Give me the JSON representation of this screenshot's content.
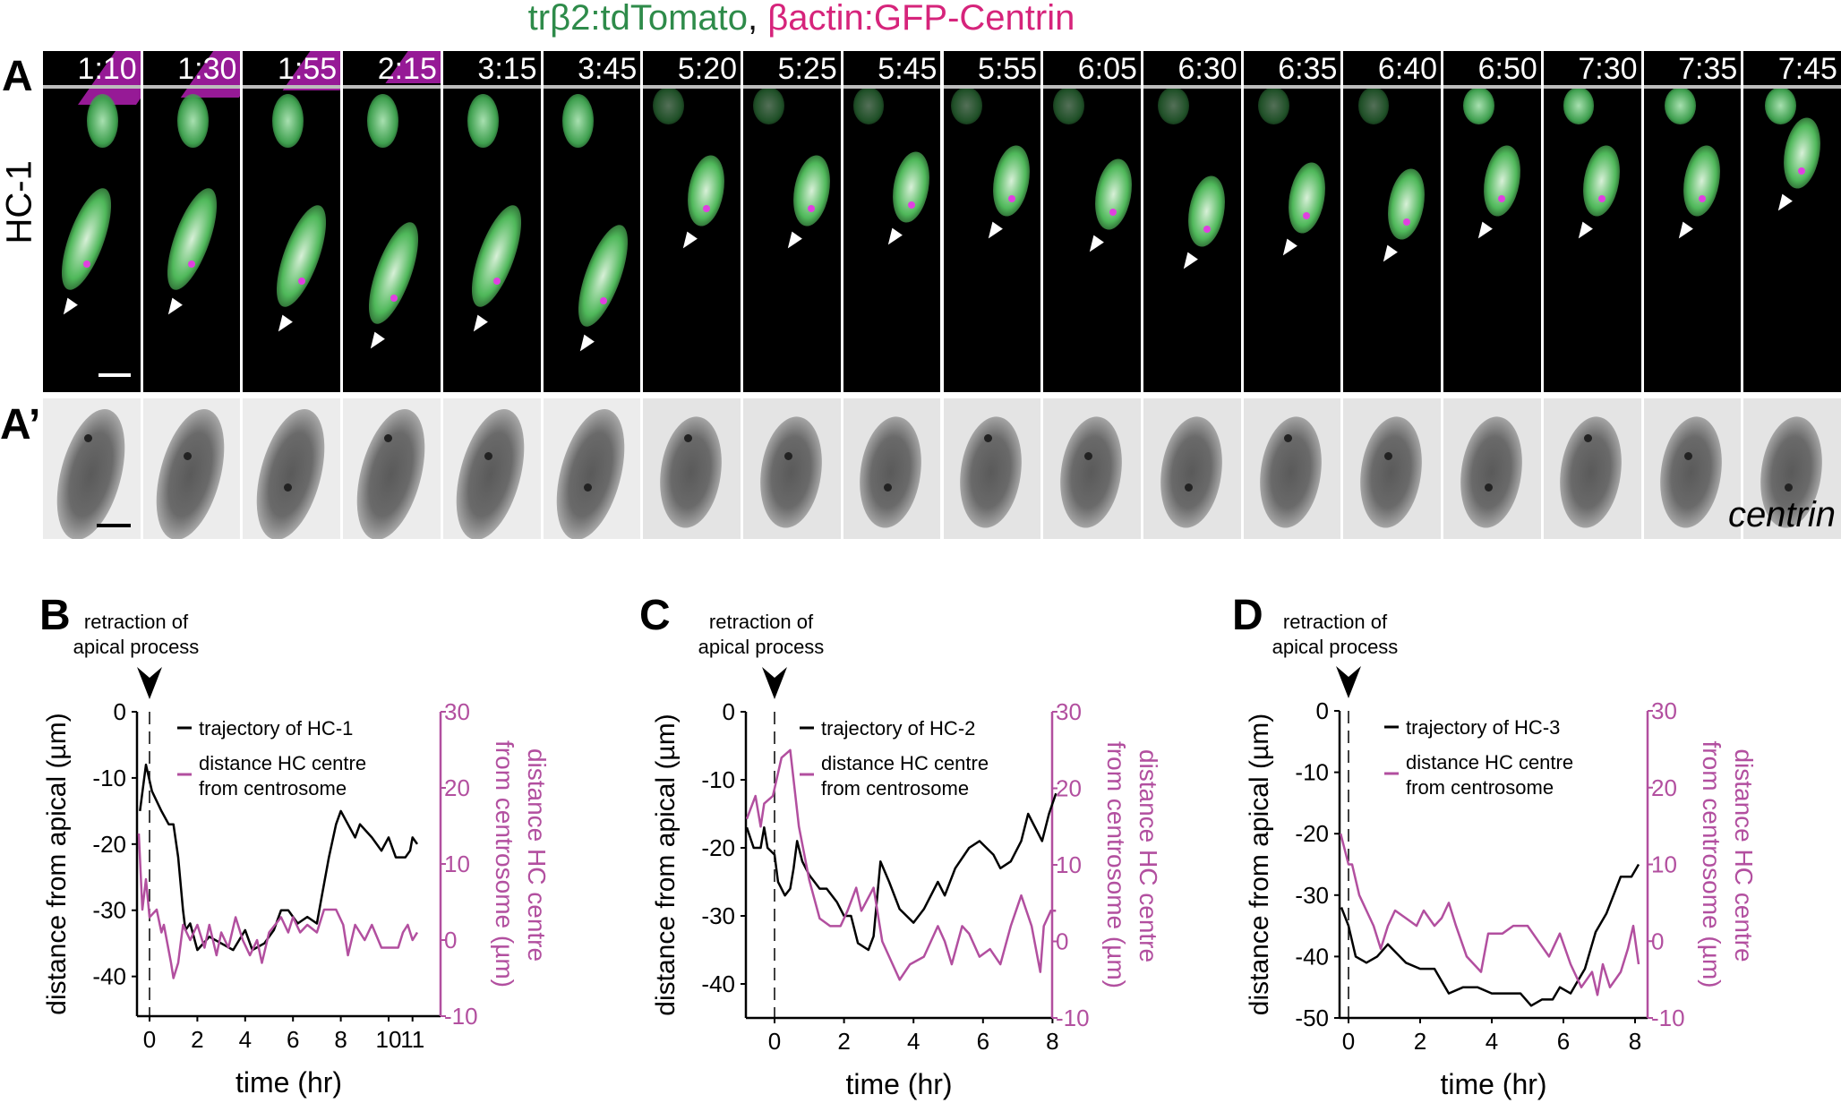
{
  "figure": {
    "title": {
      "part1": "trβ2:tdTomato",
      "sep": ",",
      "part2": " βactin:GFP-Centrin"
    },
    "colors": {
      "green": "#2e8b4a",
      "magenta_title": "#d6247b",
      "magenta_plot": "#b24f9f",
      "black": "#000000"
    },
    "panel_labels": {
      "a": "A",
      "a_prime": "A’",
      "b": "B",
      "c": "C",
      "d": "D"
    },
    "row_label": "HC-1",
    "centrin_label": "centrin",
    "timepoints": [
      "1:10",
      "1:30",
      "1:55",
      "2:15",
      "3:15",
      "3:45",
      "5:20",
      "5:25",
      "5:45",
      "5:55",
      "6:05",
      "6:30",
      "6:35",
      "6:40",
      "6:50",
      "7:30",
      "7:35",
      "7:45"
    ],
    "annotation": {
      "line1": "retraction of",
      "line2": "apical process"
    }
  },
  "chart_data": [
    {
      "type": "line",
      "panel": "B",
      "xlabel": "time (hr)",
      "ylabel": "distance from apical (µm)",
      "ylabel_right": [
        "distance HC centre",
        "from centrosome (µm)"
      ],
      "xlim": [
        -0.45,
        11.2
      ],
      "ylim": [
        -46,
        0
      ],
      "ylim_right": [
        -10,
        30
      ],
      "xticks": [
        0,
        2,
        4,
        6,
        8,
        10,
        11
      ],
      "yticks": [
        0,
        -10,
        -20,
        -30,
        -40
      ],
      "yticks_right": [
        30,
        20,
        10,
        0,
        -10
      ],
      "event_x": 0,
      "legend": {
        "position": "top-center",
        "entries": [
          "trajectory of HC-1",
          "distance HC centre\nfrom centrosome"
        ]
      },
      "series": [
        {
          "name": "trajectory of HC-1",
          "axis": "left",
          "color": "#000000",
          "x": [
            -0.4,
            -0.15,
            0.1,
            0.5,
            0.8,
            1.0,
            1.2,
            1.4,
            1.5,
            1.7,
            2.0,
            2.5,
            3.0,
            3.5,
            4.0,
            4.3,
            4.8,
            5.2,
            5.5,
            5.8,
            6.2,
            6.6,
            7.0,
            7.2,
            7.5,
            7.8,
            8.0,
            8.3,
            8.6,
            8.8,
            9.3,
            9.7,
            10.0,
            10.3,
            10.7,
            10.9,
            11.0,
            11.2
          ],
          "y": [
            -15,
            -8,
            -12,
            -15,
            -17,
            -17,
            -22,
            -30,
            -33,
            -32,
            -36,
            -34,
            -35,
            -36,
            -33,
            -36,
            -35,
            -33,
            -30,
            -30,
            -32,
            -31,
            -32,
            -28,
            -22,
            -17,
            -15,
            -17,
            -19,
            -17,
            -19,
            -21,
            -19,
            -22,
            -22,
            -21,
            -19,
            -20
          ]
        },
        {
          "name": "distance HC centre from centrosome",
          "axis": "right",
          "color": "#b24f9f",
          "x": [
            -0.45,
            -0.3,
            -0.15,
            0,
            0.3,
            0.5,
            0.6,
            0.9,
            1.0,
            1.2,
            1.4,
            1.7,
            2.0,
            2.3,
            2.5,
            2.8,
            3.0,
            3.3,
            3.6,
            3.9,
            4.2,
            4.5,
            4.7,
            5.0,
            5.5,
            5.8,
            6.0,
            6.3,
            6.6,
            7.0,
            7.3,
            7.8,
            8.1,
            8.3,
            8.6,
            9.0,
            9.3,
            9.7,
            10.0,
            10.4,
            10.6,
            10.8,
            11.0,
            11.2
          ],
          "y": [
            14,
            4,
            8,
            3,
            4,
            1,
            2,
            -3,
            -5,
            -3,
            2,
            0,
            2,
            -1,
            2,
            -2,
            1,
            -1,
            3,
            0,
            -2,
            0,
            -3,
            1,
            3,
            1,
            3,
            1,
            2,
            1,
            4,
            4,
            2,
            -2,
            2,
            0,
            2,
            -1,
            -1,
            -1,
            1,
            2,
            0,
            1
          ]
        }
      ]
    },
    {
      "type": "line",
      "panel": "C",
      "xlabel": "time (hr)",
      "ylabel": "distance from apical (µm)",
      "ylabel_right": [
        "distance HC centre",
        "from centrosome (µm)"
      ],
      "xlim": [
        -0.82,
        8.1
      ],
      "ylim": [
        -45,
        0
      ],
      "ylim_right": [
        -10,
        30
      ],
      "xticks": [
        0,
        2,
        4,
        6,
        8
      ],
      "yticks": [
        0,
        -10,
        -20,
        -30,
        -40
      ],
      "yticks_right": [
        30,
        20,
        10,
        0,
        -10
      ],
      "event_x": 0,
      "legend": {
        "position": "top-center",
        "entries": [
          "trajectory of HC-2",
          "distance HC centre\nfrom centrosome"
        ]
      },
      "series": [
        {
          "name": "trajectory of HC-2",
          "axis": "left",
          "color": "#000000",
          "x": [
            -0.8,
            -0.6,
            -0.4,
            -0.3,
            -0.2,
            0,
            0.1,
            0.3,
            0.45,
            0.55,
            0.65,
            0.8,
            1.0,
            1.3,
            1.5,
            1.8,
            2.0,
            2.2,
            2.4,
            2.7,
            2.85,
            3.05,
            3.3,
            3.6,
            4.0,
            4.3,
            4.7,
            4.9,
            5.2,
            5.6,
            5.9,
            6.3,
            6.5,
            6.8,
            7.1,
            7.3,
            7.7,
            7.9,
            8.1
          ],
          "y": [
            -17,
            -20,
            -20,
            -17,
            -20,
            -21,
            -25,
            -27,
            -26,
            -23,
            -19,
            -22,
            -24,
            -26,
            -26,
            -28,
            -30,
            -30,
            -34,
            -35,
            -33,
            -22,
            -25,
            -29,
            -31,
            -29,
            -25,
            -27,
            -23,
            -20,
            -19,
            -21,
            -23,
            -22,
            -19,
            -15,
            -19,
            -15,
            -12
          ]
        },
        {
          "name": "distance HC centre from centrosome",
          "axis": "right",
          "color": "#b24f9f",
          "x": [
            -0.8,
            -0.55,
            -0.4,
            -0.3,
            -0.05,
            0.2,
            0.45,
            0.7,
            1.0,
            1.3,
            1.6,
            1.9,
            2.1,
            2.35,
            2.5,
            2.85,
            3.1,
            3.4,
            3.6,
            3.9,
            4.3,
            4.5,
            4.7,
            4.9,
            5.1,
            5.4,
            5.6,
            5.9,
            6.2,
            6.5,
            6.8,
            7.1,
            7.4,
            7.65,
            7.75,
            7.95,
            8.1
          ],
          "y": [
            16,
            19,
            15,
            18,
            19,
            24,
            25,
            15,
            8,
            3,
            2,
            2,
            4,
            7,
            4,
            7,
            0,
            -3,
            -5,
            -3,
            -2,
            0,
            2,
            0,
            -3,
            2,
            1,
            -2,
            -1,
            -3,
            2,
            6,
            2,
            -4,
            2,
            4,
            4
          ]
        }
      ]
    },
    {
      "type": "line",
      "panel": "D",
      "xlabel": "time (hr)",
      "ylabel": "distance from apical (µm)",
      "ylabel_right": [
        "distance HC centre",
        "from centrosome (µm)"
      ],
      "xlim": [
        -0.22,
        8.1
      ],
      "ylim": [
        -50,
        0
      ],
      "ylim_right": [
        -10,
        30
      ],
      "xticks": [
        0,
        2,
        4,
        6,
        8
      ],
      "yticks": [
        0,
        -10,
        -20,
        -30,
        -40,
        -50
      ],
      "yticks_right": [
        30,
        20,
        10,
        0,
        -10
      ],
      "event_x": 0,
      "legend": {
        "position": "top-center",
        "entries": [
          "trajectory of HC-3",
          "distance HC centre\nfrom centrosome"
        ]
      },
      "series": [
        {
          "name": "trajectory of HC-3",
          "axis": "left",
          "color": "#000000",
          "x": [
            -0.2,
            0,
            0.2,
            0.5,
            0.8,
            1.1,
            1.6,
            2.0,
            2.4,
            2.8,
            3.2,
            3.6,
            4.0,
            4.4,
            4.8,
            5.1,
            5.4,
            5.7,
            5.9,
            6.2,
            6.4,
            6.6,
            6.9,
            7.2,
            7.4,
            7.6,
            7.9,
            8.1
          ],
          "y": [
            -32,
            -35,
            -40,
            -41,
            -40,
            -38,
            -41,
            -42,
            -42,
            -46,
            -45,
            -45,
            -46,
            -46,
            -46,
            -48,
            -47,
            -47,
            -45,
            -46,
            -44,
            -42,
            -36,
            -33,
            -30,
            -27,
            -27,
            -25
          ]
        },
        {
          "name": "distance HC centre from centrosome",
          "axis": "right",
          "color": "#b24f9f",
          "x": [
            -0.22,
            0,
            0.1,
            0.3,
            0.5,
            0.7,
            0.9,
            1.1,
            1.3,
            1.6,
            1.9,
            2.1,
            2.4,
            2.6,
            2.8,
            3.0,
            3.3,
            3.5,
            3.7,
            3.9,
            4.3,
            4.6,
            5.0,
            5.3,
            5.6,
            5.9,
            6.2,
            6.5,
            6.8,
            6.95,
            7.1,
            7.3,
            7.6,
            7.8,
            7.95,
            8.1
          ],
          "y": [
            14,
            10,
            10,
            6,
            4,
            2,
            -1,
            2,
            4,
            3,
            2,
            4,
            2,
            3,
            5,
            2,
            -2,
            -3,
            -4,
            1,
            1,
            2,
            2,
            0,
            -2,
            1,
            -3,
            -6,
            -4,
            -7,
            -3,
            -6,
            -4,
            -1,
            2,
            -3
          ]
        }
      ]
    }
  ]
}
